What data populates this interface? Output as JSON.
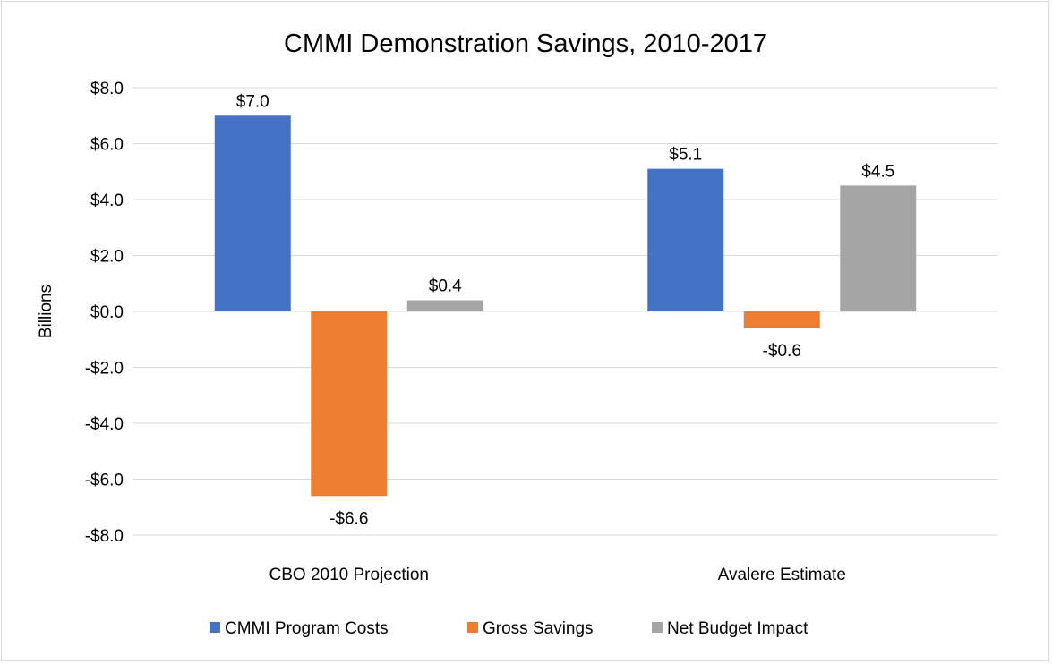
{
  "chart_data": {
    "type": "bar",
    "title": "CMMI Demonstration Savings, 2010-2017",
    "xlabel": "",
    "ylabel": "Billions",
    "ylim": [
      -8,
      8
    ],
    "yticks": [
      8,
      6,
      4,
      2,
      0,
      -2,
      -4,
      -6,
      -8
    ],
    "ytick_labels": [
      "$8.0",
      "$6.0",
      "$4.0",
      "$2.0",
      "$0.0",
      "-$2.0",
      "-$4.0",
      "-$6.0",
      "-$8.0"
    ],
    "categories": [
      "CBO 2010 Projection",
      "Avalere Estimate"
    ],
    "series": [
      {
        "name": "CMMI Program Costs",
        "values": [
          7.0,
          5.1
        ],
        "labels": [
          "$7.0",
          "$5.1"
        ],
        "color": "#4472c4"
      },
      {
        "name": "Gross Savings",
        "values": [
          -6.6,
          -0.6
        ],
        "labels": [
          "-$6.6",
          "-$0.6"
        ],
        "color": "#ed7d31"
      },
      {
        "name": "Net Budget Impact",
        "values": [
          0.4,
          4.5
        ],
        "labels": [
          "$0.4",
          "$4.5"
        ],
        "color": "#a5a5a5"
      }
    ],
    "grid": true,
    "legend": "bottom"
  }
}
